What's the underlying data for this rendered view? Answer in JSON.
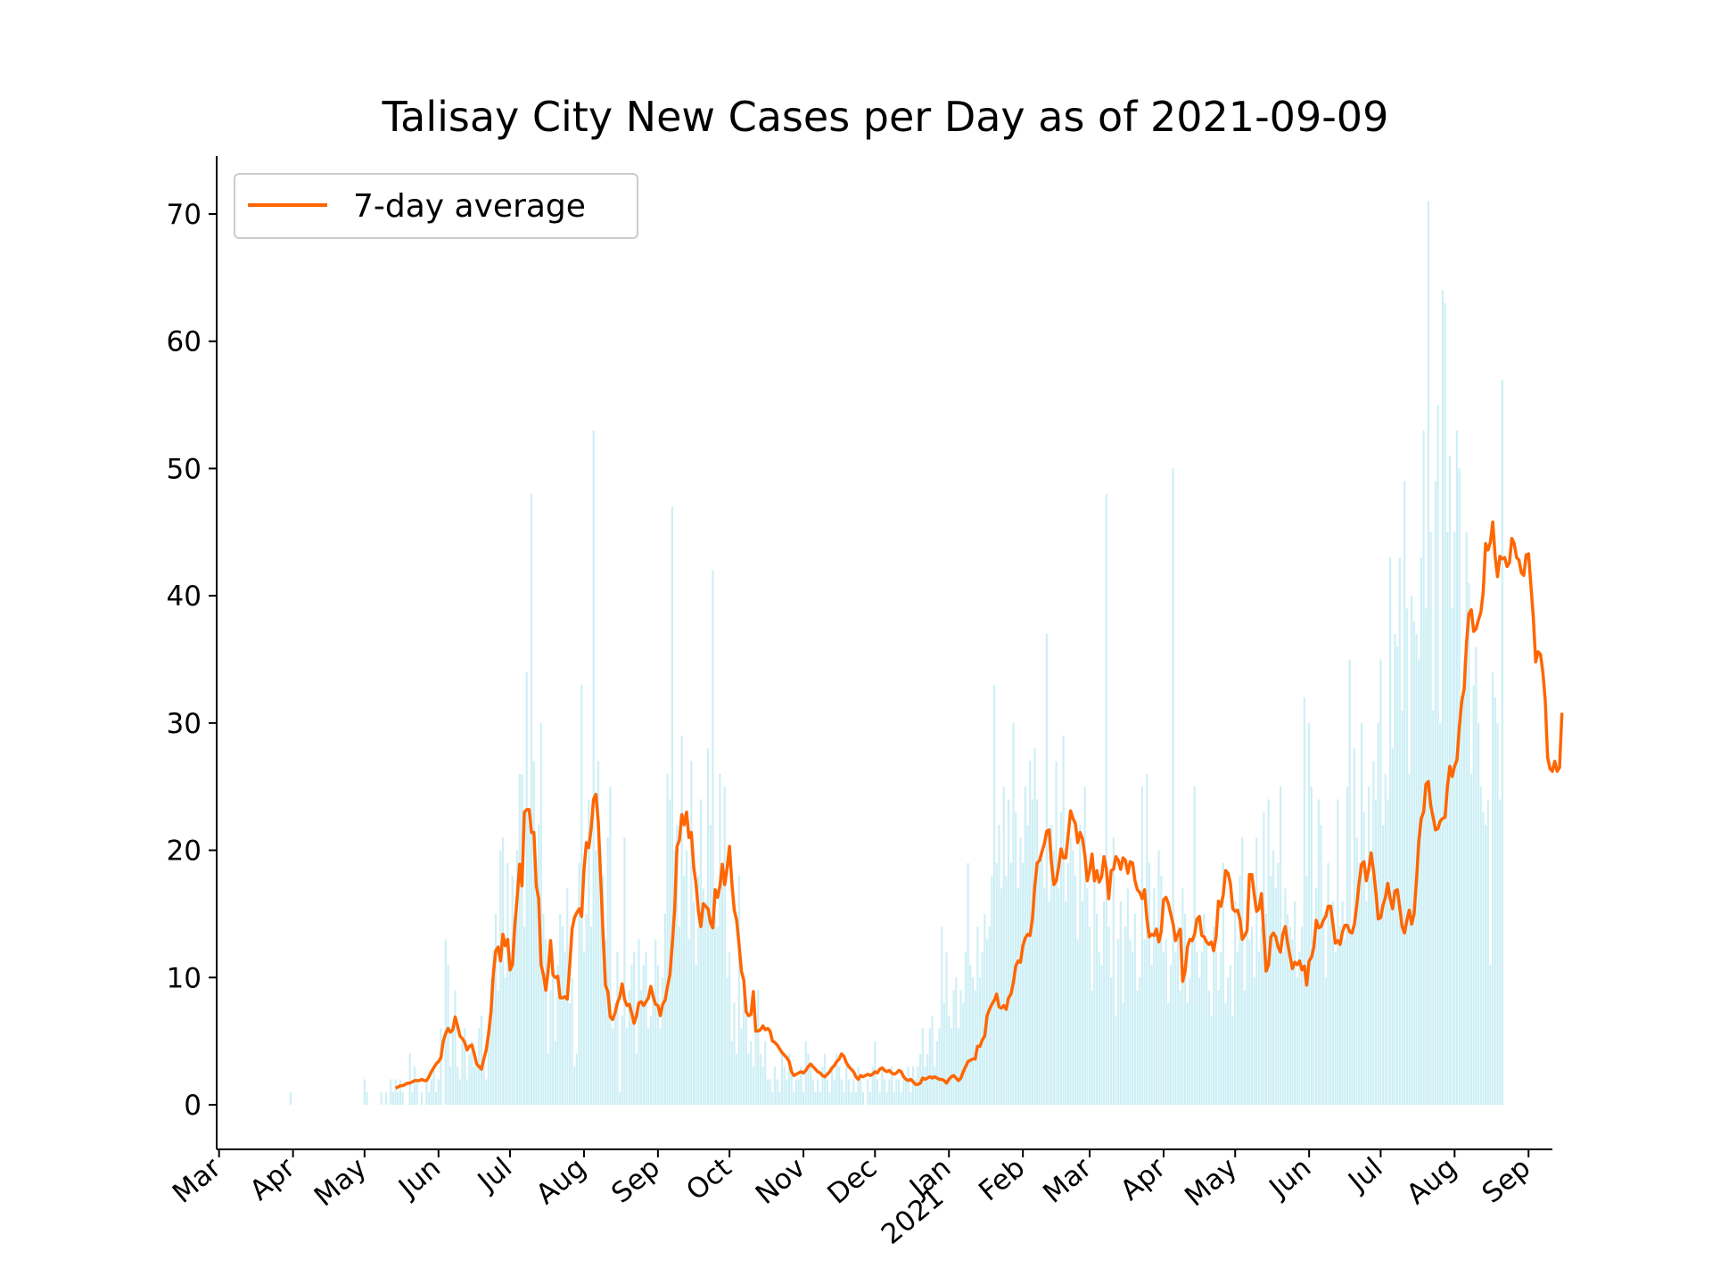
{
  "chart_data": {
    "type": "bar",
    "title": "Talisay City New Cases per Day as of 2021-09-09",
    "xlabel": "",
    "ylabel": "",
    "ylim": [
      -3.5,
      74.5
    ],
    "xlim": [
      "2020-02-29",
      "2021-09-11"
    ],
    "grid": false,
    "legend": {
      "position": "top-left",
      "entries": [
        "7-day average"
      ]
    },
    "colors": {
      "bars": "#cdeff5",
      "line": "#ff6600",
      "axis": "#000000"
    },
    "y_ticks": [
      0,
      10,
      20,
      30,
      40,
      50,
      60,
      70
    ],
    "x_ticks": [
      {
        "date": "2020-03-01",
        "label": "Mar"
      },
      {
        "date": "2020-04-01",
        "label": "Apr"
      },
      {
        "date": "2020-05-01",
        "label": "May"
      },
      {
        "date": "2020-06-01",
        "label": "Jun"
      },
      {
        "date": "2020-07-01",
        "label": "Jul"
      },
      {
        "date": "2020-08-01",
        "label": "Aug"
      },
      {
        "date": "2020-09-01",
        "label": "Sep"
      },
      {
        "date": "2020-10-01",
        "label": "Oct"
      },
      {
        "date": "2020-11-01",
        "label": "Nov"
      },
      {
        "date": "2020-12-01",
        "label": "Dec"
      },
      {
        "date": "2021-01-01",
        "label": "Jan",
        "sublabel": "2021"
      },
      {
        "date": "2021-02-01",
        "label": "Feb"
      },
      {
        "date": "2021-03-01",
        "label": "Mar"
      },
      {
        "date": "2021-04-01",
        "label": "Apr"
      },
      {
        "date": "2021-05-01",
        "label": "May"
      },
      {
        "date": "2021-06-01",
        "label": "Jun"
      },
      {
        "date": "2021-07-01",
        "label": "Jul"
      },
      {
        "date": "2021-08-01",
        "label": "Aug"
      },
      {
        "date": "2021-09-01",
        "label": "Sep"
      }
    ],
    "bars": {
      "start_date": "2020-03-31",
      "values": [
        1,
        0,
        0,
        0,
        0,
        0,
        0,
        0,
        0,
        0,
        0,
        0,
        0,
        0,
        0,
        0,
        0,
        0,
        0,
        0,
        0,
        0,
        0,
        0,
        0,
        0,
        0,
        0,
        0,
        0,
        0,
        2,
        1,
        0,
        0,
        0,
        0,
        0,
        1,
        0,
        1,
        0,
        2,
        1,
        2,
        1,
        2,
        1,
        0,
        0,
        4,
        1,
        3,
        2,
        0,
        1,
        0,
        2,
        1,
        2,
        3,
        1,
        2,
        6,
        0,
        13,
        11,
        3,
        6,
        9,
        3,
        2,
        5,
        6,
        2,
        4,
        5,
        3,
        3,
        6,
        7,
        4,
        2,
        6,
        10,
        12,
        15,
        9,
        20,
        21,
        10,
        19,
        12,
        18,
        15,
        20,
        26,
        26,
        14,
        34,
        22,
        48,
        27,
        18,
        22,
        30,
        15,
        13,
        4,
        9,
        12,
        5,
        11,
        15,
        14,
        12,
        17,
        8,
        10,
        3,
        4,
        19,
        33,
        12,
        15,
        24,
        14,
        53,
        20,
        27,
        20,
        18,
        13,
        21,
        25,
        6,
        8,
        12,
        1,
        7,
        21,
        6,
        9,
        11,
        12,
        4,
        13,
        9,
        11,
        12,
        6,
        7,
        9,
        13,
        11,
        6,
        10,
        15,
        26,
        24,
        47,
        20,
        22,
        14,
        29,
        18,
        20,
        13,
        27,
        16,
        11,
        18,
        24,
        17,
        16,
        28,
        22,
        42,
        15,
        14,
        26,
        18,
        25,
        10,
        12,
        5,
        8,
        4,
        18,
        6,
        9,
        7,
        4,
        5,
        3,
        6,
        9,
        4,
        3,
        5,
        2,
        2,
        1,
        3,
        2,
        1,
        4,
        3,
        2,
        4,
        3,
        1,
        2,
        2,
        3,
        1,
        5,
        4,
        3,
        2,
        1,
        2,
        1,
        3,
        4,
        2,
        1,
        3,
        2,
        4,
        3,
        2,
        1,
        3,
        2,
        1,
        2,
        1,
        3,
        2,
        1,
        0,
        2,
        1,
        3,
        5,
        2,
        1,
        3,
        2,
        1,
        2,
        3,
        1,
        2,
        2,
        1,
        2,
        2,
        3,
        1,
        3,
        2,
        3,
        4,
        6,
        3,
        4,
        6,
        7,
        3,
        5,
        6,
        14,
        8,
        12,
        7,
        6,
        9,
        10,
        6,
        9,
        8,
        12,
        19,
        11,
        10,
        9,
        14,
        10,
        12,
        15,
        13,
        14,
        18,
        33,
        19,
        22,
        17,
        25,
        18,
        24,
        19,
        30,
        23,
        17,
        21,
        19,
        25,
        22,
        27,
        24,
        28,
        24,
        19,
        20,
        17,
        37,
        16,
        22,
        20,
        27,
        17,
        23,
        29,
        16,
        19,
        21,
        20,
        18,
        13,
        22,
        16,
        25,
        17,
        14,
        9,
        18,
        15,
        12,
        11,
        16,
        48,
        14,
        10,
        21,
        7,
        13,
        16,
        8,
        14,
        17,
        13,
        12,
        15,
        9,
        10,
        25,
        13,
        26,
        19,
        11,
        17,
        14,
        20,
        18,
        12,
        13,
        8,
        11,
        50,
        12,
        14,
        9,
        17,
        15,
        8,
        10,
        13,
        25,
        12,
        10,
        12,
        15,
        13,
        9,
        7,
        14,
        12,
        9,
        12,
        19,
        8,
        10,
        11,
        7,
        16,
        12,
        18,
        21,
        9,
        16,
        13,
        14,
        10,
        21,
        12,
        14,
        23,
        15,
        24,
        18,
        20,
        17,
        19,
        25,
        12,
        17,
        15,
        14,
        13,
        16,
        10,
        12,
        14,
        32,
        18,
        30,
        25,
        13,
        17,
        24,
        22,
        15,
        10,
        19,
        15,
        16,
        12,
        24,
        14,
        16,
        13,
        25,
        35,
        14,
        28,
        21,
        19,
        30,
        23,
        16,
        25,
        18,
        27,
        24,
        30,
        35,
        22,
        26,
        24,
        43,
        28,
        37,
        36,
        43,
        31,
        49,
        39,
        26,
        40,
        38,
        37,
        35,
        43,
        53,
        39,
        71,
        45,
        31,
        49,
        55,
        30,
        64,
        63,
        45,
        51,
        39,
        45,
        53,
        50,
        31,
        35,
        45,
        41,
        26,
        33,
        36,
        30,
        25,
        23,
        22,
        24,
        11,
        34,
        32,
        30,
        24,
        57
      ]
    },
    "line": {
      "label": "7-day average",
      "start_date": "2020-05-14",
      "values": [
        1.3,
        1.4,
        1.5,
        1.5,
        1.6,
        1.7,
        1.7,
        1.8,
        1.9,
        1.9,
        1.9,
        2.0,
        1.9,
        1.9,
        2.2,
        2.6,
        2.9,
        3.2,
        3.4,
        3.7,
        5.0,
        5.6,
        6.0,
        5.7,
        5.9,
        6.9,
        6.2,
        5.4,
        5.2,
        4.9,
        4.3,
        4.6,
        4.7,
        4.0,
        3.2,
        3.0,
        2.8,
        3.6,
        4.3,
        5.6,
        7.3,
        10.3,
        12.1,
        12.4,
        11.3,
        13.4,
        12.5,
        13.0,
        10.6,
        11.0,
        14.1,
        16.3,
        18.9,
        17.2,
        23.0,
        23.2,
        23.2,
        21.4,
        21.4,
        17.2,
        16.2,
        11.0,
        10.2,
        9.0,
        10.6,
        12.9,
        10.2,
        10.0,
        10.1,
        8.4,
        8.4,
        8.5,
        8.3,
        10.9,
        13.8,
        14.7,
        15.1,
        15.4,
        14.8,
        18.5,
        20.6,
        20.2,
        21.7,
        24.0,
        24.4,
        22.2,
        17.8,
        13.4,
        9.4,
        8.9,
        6.9,
        6.7,
        7.2,
        8.0,
        8.5,
        9.5,
        8.3,
        7.8,
        7.9,
        7.2,
        6.4,
        7.0,
        8.0,
        8.1,
        7.8,
        8.1,
        8.4,
        9.3,
        8.5,
        7.9,
        7.8,
        7.0,
        7.9,
        8.2,
        9.3,
        10.2,
        12.6,
        15.3,
        20.3,
        20.8,
        22.8,
        22.0,
        23.0,
        21.0,
        21.4,
        18.7,
        17.3,
        15.2,
        14.0,
        15.8,
        15.6,
        15.4,
        14.3,
        13.9,
        16.9,
        16.3,
        17.2,
        18.9,
        17.3,
        18.6,
        20.3,
        17.4,
        15.3,
        14.5,
        12.6,
        10.5,
        9.8,
        7.3,
        7.0,
        7.1,
        8.9,
        5.8,
        5.8,
        5.9,
        6.2,
        5.9,
        6.0,
        5.8,
        5.0,
        4.9,
        4.7,
        4.4,
        4.1,
        3.9,
        3.7,
        3.4,
        2.6,
        2.3,
        2.4,
        2.5,
        2.6,
        2.5,
        2.7,
        3.0,
        3.2,
        3.0,
        2.8,
        2.6,
        2.5,
        2.3,
        2.2,
        2.4,
        2.6,
        2.9,
        3.1,
        3.4,
        3.6,
        4.0,
        3.8,
        3.3,
        3.0,
        2.8,
        2.6,
        2.2,
        2.0,
        2.3,
        2.2,
        2.3,
        2.4,
        2.3,
        2.4,
        2.6,
        2.5,
        2.8,
        2.9,
        2.7,
        2.6,
        2.7,
        2.5,
        2.4,
        2.5,
        2.7,
        2.6,
        2.2,
        2.0,
        1.9,
        2.0,
        1.8,
        1.6,
        1.6,
        1.7,
        2.1,
        2.0,
        2.1,
        2.2,
        2.1,
        2.2,
        2.1,
        2.0,
        2.0,
        1.9,
        1.7,
        2.0,
        2.2,
        2.3,
        2.1,
        1.9,
        2.1,
        2.6,
        3.0,
        3.4,
        3.5,
        3.6,
        3.6,
        4.6,
        4.6,
        5.1,
        5.4,
        7.0,
        7.5,
        7.9,
        8.2,
        8.7,
        7.7,
        7.6,
        7.8,
        7.5,
        8.4,
        8.7,
        9.6,
        10.9,
        11.3,
        11.2,
        12.5,
        13.1,
        13.4,
        13.3,
        14.6,
        17.2,
        19.0,
        19.2,
        19.9,
        20.5,
        21.5,
        21.6,
        19.0,
        17.3,
        17.6,
        18.7,
        20.1,
        19.4,
        19.4,
        21.2,
        23.1,
        22.5,
        22.1,
        20.6,
        21.4,
        20.9,
        19.6,
        17.6,
        18.4,
        19.7,
        17.6,
        18.4,
        17.5,
        17.9,
        19.5,
        18.5,
        16.2,
        18.4,
        18.5,
        19.5,
        19.2,
        18.5,
        19.4,
        19.2,
        18.2,
        19.1,
        19.0,
        17.6,
        16.9,
        16.7,
        16.2,
        16.9,
        14.6,
        13.2,
        13.4,
        13.3,
        13.8,
        12.8,
        13.6,
        16.1,
        16.3,
        15.8,
        15.0,
        14.2,
        12.9,
        13.4,
        13.8,
        9.7,
        10.5,
        12.4,
        13.0,
        12.9,
        13.4,
        14.6,
        14.8,
        13.3,
        13.2,
        12.8,
        12.6,
        12.8,
        12.1,
        13.2,
        16.0,
        15.6,
        16.5,
        18.4,
        18.2,
        17.4,
        15.4,
        15.2,
        15.3,
        14.6,
        13.0,
        13.3,
        13.7,
        18.1,
        18.1,
        16.5,
        15.2,
        15.4,
        16.6,
        13.5,
        10.5,
        11.0,
        13.2,
        13.5,
        13.2,
        12.4,
        12.0,
        13.4,
        14.0,
        12.7,
        11.7,
        10.7,
        11.2,
        11.0,
        11.3,
        10.6,
        10.9,
        9.4,
        11.3,
        11.6,
        12.4,
        14.5,
        13.9,
        14.0,
        14.5,
        14.8,
        15.6,
        15.6,
        14.2,
        12.7,
        12.9,
        12.6,
        13.6,
        14.1,
        14.1,
        13.6,
        13.5,
        14.2,
        15.7,
        17.5,
        18.9,
        19.1,
        17.6,
        18.5,
        19.8,
        18.4,
        16.7,
        14.6,
        14.7,
        15.7,
        16.3,
        17.4,
        16.2,
        15.4,
        16.8,
        16.9,
        15.5,
        14.0,
        13.5,
        14.5,
        15.3,
        14.2,
        15.0,
        17.6,
        20.7,
        22.5,
        23.0,
        25.2,
        25.4,
        23.5,
        22.6,
        21.6,
        21.7,
        22.3,
        22.5,
        22.6,
        25.0,
        26.6,
        25.8,
        26.6,
        27.1,
        29.7,
        31.7,
        32.7,
        36.3,
        38.6,
        38.9,
        37.2,
        37.4,
        38.1,
        38.7,
        40.3,
        44.1,
        43.6,
        44.2,
        45.8,
        43.1,
        41.5,
        43.1,
        42.9,
        43.0,
        42.3,
        42.6,
        44.5,
        44.1,
        43.0,
        42.8,
        41.8,
        41.6,
        43.2,
        43.3,
        40.8,
        38.3,
        34.8,
        35.6,
        35.4,
        34.0,
        31.8,
        27.3,
        26.4,
        26.2,
        27.0,
        26.2,
        26.5,
        30.8
      ]
    }
  }
}
